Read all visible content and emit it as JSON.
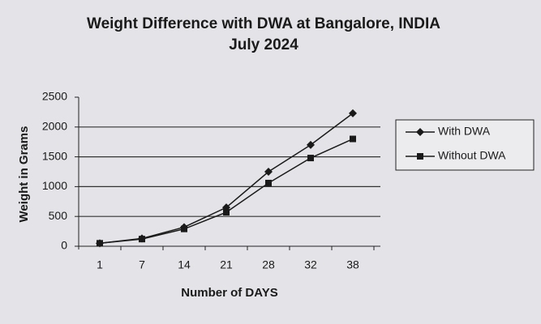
{
  "chart_data": {
    "type": "line",
    "title": "Weight Difference with DWA at Bangalore, INDIA",
    "subtitle": "July 2024",
    "x_label": "Number of  DAYS",
    "y_label": "Weight in Grams",
    "categories": [
      "1",
      "7",
      "14",
      "21",
      "28",
      "32",
      "38"
    ],
    "series": [
      {
        "name": "With DWA",
        "color": "#1a1a1a",
        "marker": "diamond",
        "values": [
          50,
          130,
          320,
          650,
          1250,
          1700,
          2230
        ]
      },
      {
        "name": "Without DWA",
        "color": "#1a1a1a",
        "marker": "square",
        "values": [
          50,
          120,
          290,
          570,
          1060,
          1480,
          1800
        ]
      }
    ],
    "ylim": [
      0,
      2500
    ],
    "yticks": [
      0,
      500,
      1000,
      1500,
      2000,
      2500
    ],
    "grid": true,
    "legend": "right"
  }
}
